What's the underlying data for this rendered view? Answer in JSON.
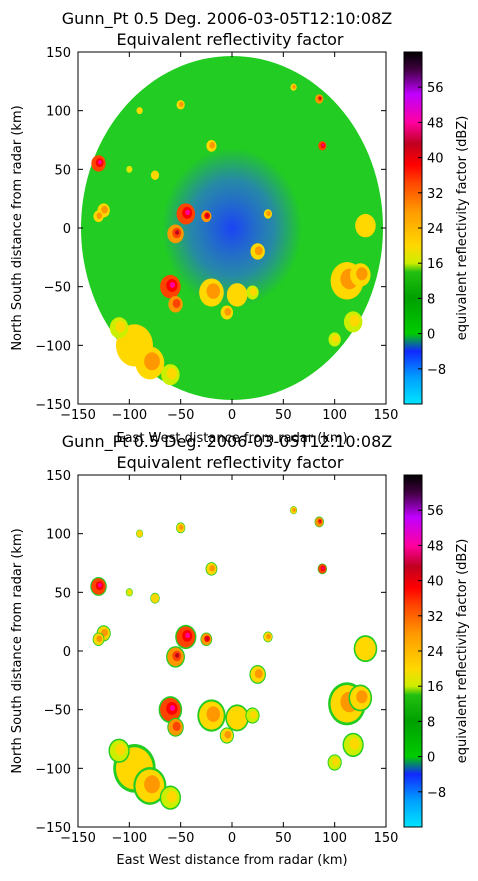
{
  "chart_data": [
    {
      "type": "heatmap",
      "title": "Gunn_Pt 0.5 Deg. 2006-03-05T12:10:08Z",
      "subtitle": "Equivalent reflectivity factor",
      "xlabel": "East West distance from radar (km)",
      "ylabel": "North South distance from radar (km)",
      "xlim": [
        -150,
        150
      ],
      "ylim": [
        -150,
        150
      ],
      "x_ticks": [
        "−150",
        "−100",
        "−50",
        "0",
        "50",
        "100",
        "150"
      ],
      "y_ticks": [
        "−150",
        "−100",
        "−50",
        "0",
        "50",
        "100",
        "150"
      ],
      "filtered": false,
      "colorbar": {
        "label": "equivalent reflectivity factor (dBZ)",
        "range": [
          -16,
          64
        ],
        "ticks": [
          "−8",
          "0",
          "8",
          "16",
          "24",
          "32",
          "40",
          "48",
          "56"
        ]
      }
    },
    {
      "type": "heatmap",
      "title": "Gunn_Pt 0.5 Deg. 2006-03-05T12:10:08Z",
      "subtitle": "Equivalent reflectivity factor",
      "xlabel": "East West distance from radar (km)",
      "ylabel": "North South distance from radar (km)",
      "xlim": [
        -150,
        150
      ],
      "ylim": [
        -150,
        150
      ],
      "x_ticks": [
        "−150",
        "−100",
        "−50",
        "0",
        "50",
        "100",
        "150"
      ],
      "y_ticks": [
        "−150",
        "−100",
        "−50",
        "0",
        "50",
        "100",
        "150"
      ],
      "filtered": true,
      "colorbar": {
        "label": "equivalent reflectivity factor (dBZ)",
        "range": [
          -16,
          64
        ],
        "ticks": [
          "−8",
          "0",
          "8",
          "16",
          "24",
          "32",
          "40",
          "48",
          "56"
        ]
      }
    }
  ],
  "echoes": [
    {
      "x": 112,
      "y": -45,
      "r": 16,
      "dbz": 28
    },
    {
      "x": 125,
      "y": -40,
      "r": 10,
      "dbz": 32
    },
    {
      "x": 130,
      "y": 2,
      "r": 10,
      "dbz": 26
    },
    {
      "x": 118,
      "y": -80,
      "r": 9,
      "dbz": 24
    },
    {
      "x": 100,
      "y": -95,
      "r": 6,
      "dbz": 22
    },
    {
      "x": -95,
      "y": -100,
      "r": 18,
      "dbz": 26
    },
    {
      "x": -80,
      "y": -115,
      "r": 14,
      "dbz": 30
    },
    {
      "x": -110,
      "y": -85,
      "r": 9,
      "dbz": 24
    },
    {
      "x": -60,
      "y": -125,
      "r": 9,
      "dbz": 22
    },
    {
      "x": -60,
      "y": -50,
      "r": 10,
      "dbz": 40
    },
    {
      "x": -55,
      "y": -65,
      "r": 7,
      "dbz": 34
    },
    {
      "x": -20,
      "y": -55,
      "r": 12,
      "dbz": 30
    },
    {
      "x": 5,
      "y": -57,
      "r": 10,
      "dbz": 26
    },
    {
      "x": -5,
      "y": -72,
      "r": 6,
      "dbz": 28
    },
    {
      "x": 20,
      "y": -55,
      "r": 6,
      "dbz": 24
    },
    {
      "x": -45,
      "y": 12,
      "r": 9,
      "dbz": 40
    },
    {
      "x": -55,
      "y": -5,
      "r": 8,
      "dbz": 36
    },
    {
      "x": -25,
      "y": 10,
      "r": 5,
      "dbz": 38
    },
    {
      "x": -130,
      "y": 55,
      "r": 7,
      "dbz": 42
    },
    {
      "x": -125,
      "y": 15,
      "r": 6,
      "dbz": 32
    },
    {
      "x": -130,
      "y": 10,
      "r": 5,
      "dbz": 28
    },
    {
      "x": -20,
      "y": 70,
      "r": 5,
      "dbz": 28
    },
    {
      "x": 25,
      "y": -20,
      "r": 7,
      "dbz": 30
    },
    {
      "x": 35,
      "y": 12,
      "r": 4,
      "dbz": 28
    },
    {
      "x": 88,
      "y": 70,
      "r": 4,
      "dbz": 40
    },
    {
      "x": 85,
      "y": 110,
      "r": 4,
      "dbz": 36
    },
    {
      "x": -75,
      "y": 45,
      "r": 4,
      "dbz": 26
    },
    {
      "x": -100,
      "y": 50,
      "r": 3,
      "dbz": 22
    },
    {
      "x": 60,
      "y": 120,
      "r": 3,
      "dbz": 30
    },
    {
      "x": -90,
      "y": 100,
      "r": 3,
      "dbz": 26
    },
    {
      "x": -50,
      "y": 105,
      "r": 4,
      "dbz": 28
    }
  ]
}
